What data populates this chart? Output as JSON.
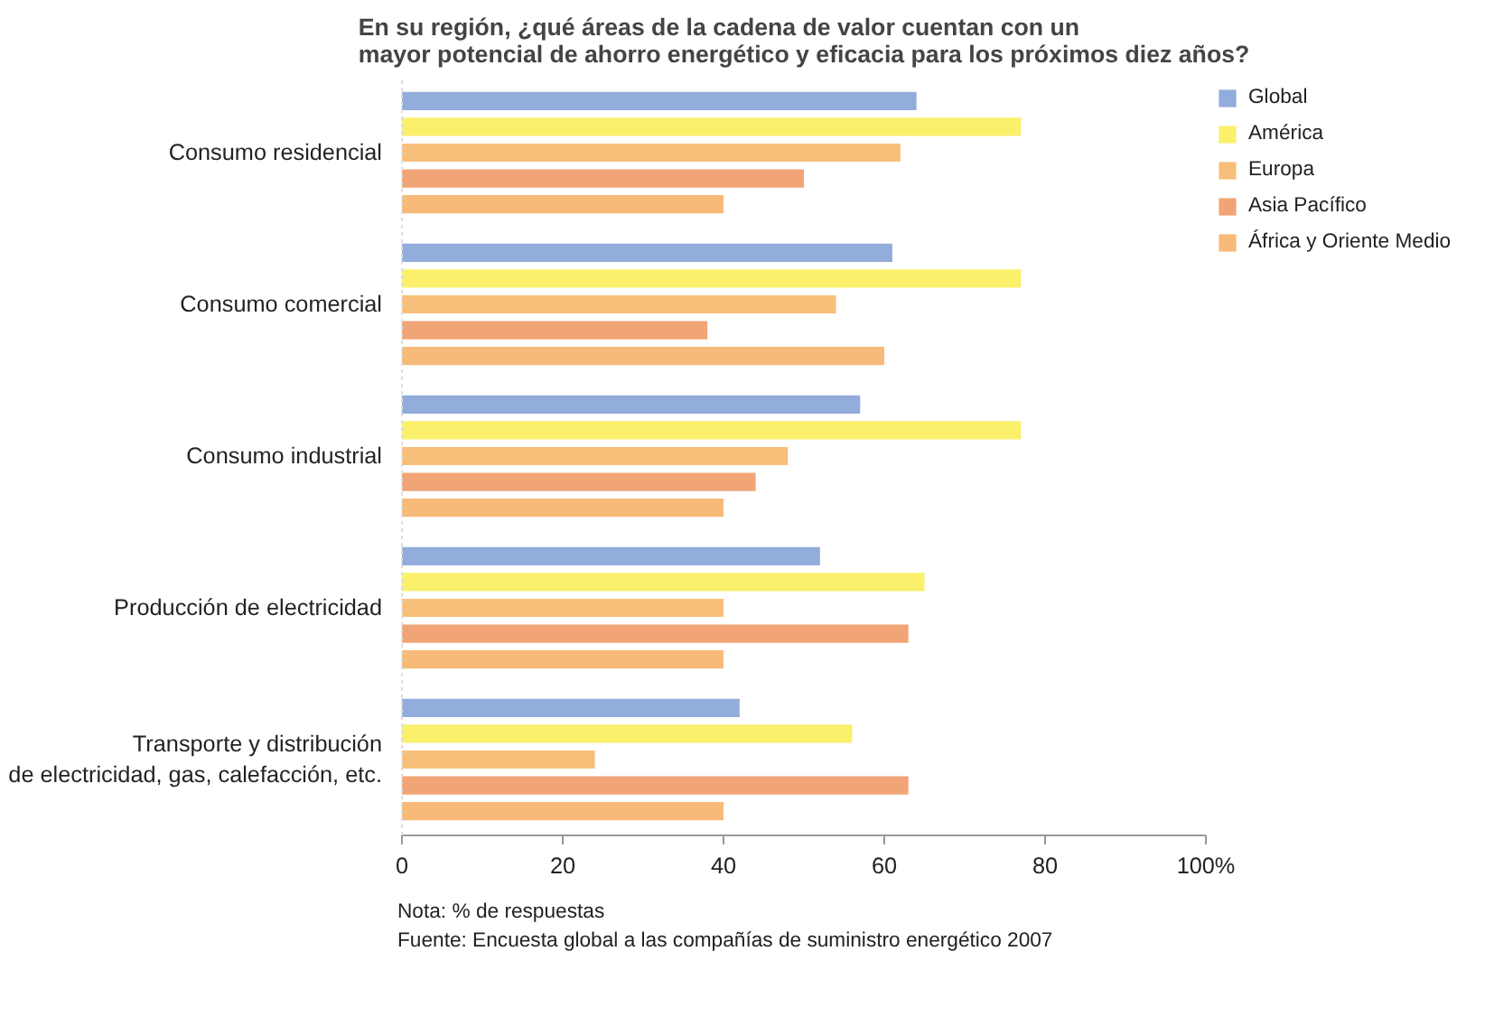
{
  "chart_data": {
    "type": "bar",
    "orientation": "horizontal",
    "title": "En su región, ¿qué áreas de la cadena de valor cuentan con un\nmayor potencial de ahorro energético y eficacia para los próximos diez años?",
    "categories": [
      "Consumo residencial",
      "Consumo comercial",
      "Consumo industrial",
      "Producción de electricidad",
      "Transporte y distribución\nde electricidad, gas, calefacción, etc."
    ],
    "series": [
      {
        "name": "Global",
        "color": "#92acdc",
        "values": [
          64,
          61,
          57,
          52,
          42
        ]
      },
      {
        "name": "América",
        "color": "#faf06c",
        "values": [
          77,
          77,
          77,
          65,
          56
        ]
      },
      {
        "name": "Europa",
        "color": "#f8bf7a",
        "values": [
          62,
          54,
          48,
          40,
          24
        ]
      },
      {
        "name": "Asia Pacífico",
        "color": "#f1a476",
        "values": [
          50,
          38,
          44,
          63,
          63
        ]
      },
      {
        "name": "África y Oriente Medio",
        "color": "#f7ba78",
        "values": [
          40,
          60,
          40,
          40,
          40
        ]
      }
    ],
    "xlim": [
      0,
      100
    ],
    "xticks": [
      0,
      20,
      40,
      60,
      80,
      {
        "value": 100,
        "label": "100%"
      }
    ],
    "grid": false,
    "legend": "top right",
    "annotations": [
      "Nota: % de respuestas",
      "Fuente: Encuesta global a las compañías de suministro energético 2007"
    ]
  }
}
